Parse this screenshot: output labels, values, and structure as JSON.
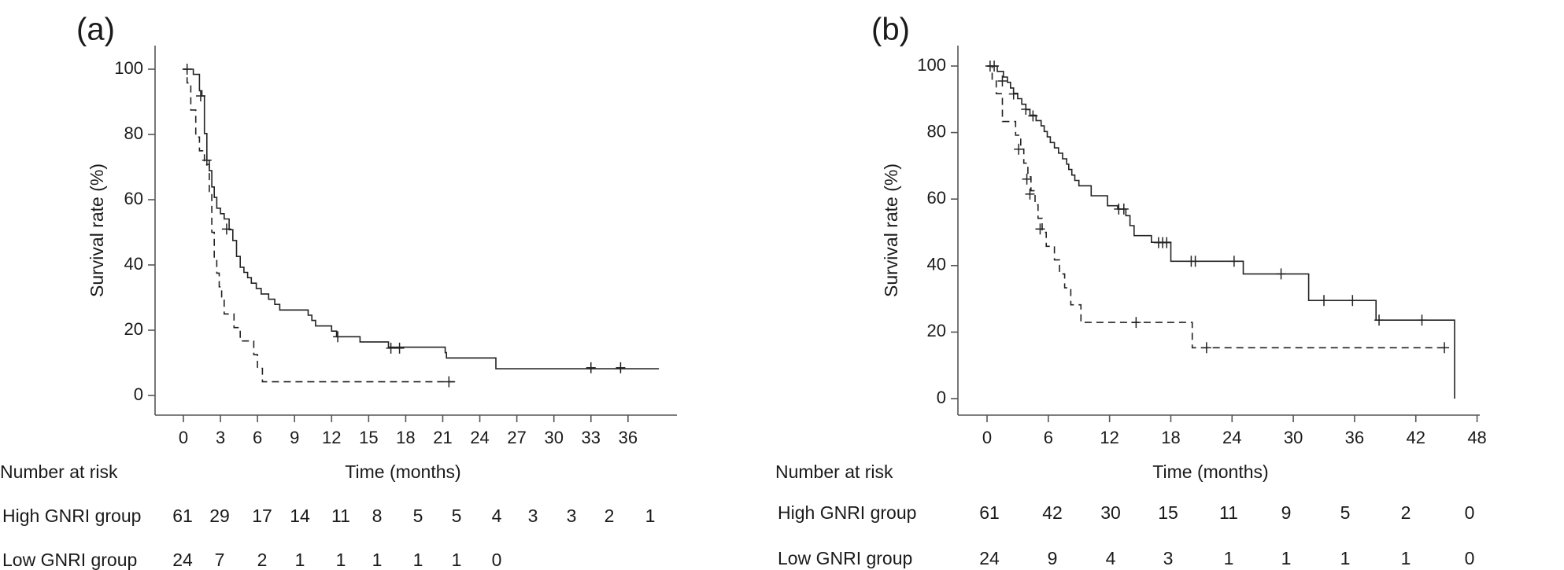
{
  "chart_data": [
    {
      "type": "line",
      "panel_label": "(a)",
      "xlabel": "Time (months)",
      "ylabel": "Survival rate (%)",
      "xlim": [
        -2,
        39.5
      ],
      "ylim": [
        -2,
        106
      ],
      "xticks": [
        "0",
        "3",
        "6",
        "9",
        "12",
        "15",
        "18",
        "21",
        "24",
        "27",
        "30",
        "33",
        "36"
      ],
      "yticks": [
        "0",
        "20",
        "40",
        "60",
        "80",
        "100"
      ],
      "series": [
        {
          "style": "solid",
          "steps": [
            [
              0,
              100
            ],
            [
              0.8,
              98.4
            ],
            [
              1.3,
              93.4
            ],
            [
              1.5,
              91.8
            ],
            [
              1.7,
              80.3
            ],
            [
              1.9,
              72.1
            ],
            [
              2.1,
              68.9
            ],
            [
              2.3,
              63.9
            ],
            [
              2.5,
              60.7
            ],
            [
              2.7,
              57.4
            ],
            [
              3.0,
              55.7
            ],
            [
              3.3,
              54.1
            ],
            [
              3.7,
              50.8
            ],
            [
              4.0,
              47.5
            ],
            [
              4.3,
              42.6
            ],
            [
              4.6,
              39.3
            ],
            [
              4.9,
              37.7
            ],
            [
              5.2,
              36.1
            ],
            [
              5.5,
              34.4
            ],
            [
              5.9,
              32.8
            ],
            [
              6.3,
              31.1
            ],
            [
              6.9,
              29.5
            ],
            [
              7.4,
              27.9
            ],
            [
              7.8,
              26.2
            ],
            [
              10.1,
              24.6
            ],
            [
              10.4,
              23.0
            ],
            [
              10.7,
              21.3
            ],
            [
              12.0,
              19.7
            ],
            [
              12.4,
              18.0
            ],
            [
              14.3,
              16.4
            ],
            [
              16.6,
              14.8
            ],
            [
              21.2,
              13.1
            ],
            [
              21.3,
              11.5
            ],
            [
              25.3,
              8.2
            ],
            [
              38.5,
              8.2
            ]
          ],
          "censored": [
            [
              0.3,
              100
            ],
            [
              1.4,
              91.8
            ],
            [
              1.9,
              72.1
            ],
            [
              3.5,
              51.0
            ],
            [
              12.5,
              18.0
            ],
            [
              16.8,
              14.5
            ],
            [
              17.5,
              14.5
            ],
            [
              33.0,
              8.5
            ],
            [
              35.4,
              8.5
            ]
          ]
        },
        {
          "style": "dashed",
          "steps": [
            [
              0,
              100
            ],
            [
              0.3,
              95.8
            ],
            [
              0.6,
              87.5
            ],
            [
              1.0,
              79.2
            ],
            [
              1.3,
              75.0
            ],
            [
              1.7,
              70.8
            ],
            [
              2.1,
              62.5
            ],
            [
              2.3,
              50.0
            ],
            [
              2.5,
              41.7
            ],
            [
              2.7,
              37.5
            ],
            [
              2.9,
              33.3
            ],
            [
              3.1,
              29.2
            ],
            [
              3.3,
              25.0
            ],
            [
              4.1,
              20.8
            ],
            [
              4.6,
              16.7
            ],
            [
              5.7,
              12.5
            ],
            [
              6.0,
              8.3
            ],
            [
              6.4,
              4.2
            ],
            [
              22.0,
              4.2
            ]
          ],
          "censored": [
            [
              21.5,
              4.2
            ]
          ]
        }
      ],
      "risk_table": {
        "title": "Number at risk",
        "times": [
          0,
          3,
          6,
          9,
          12,
          15,
          18,
          21,
          24,
          27,
          30,
          33,
          36
        ],
        "rows": [
          {
            "label": "High GNRI group",
            "values": [
              "61",
              "29",
              "17",
              "14",
              "11",
              "8",
              "5",
              "5",
              "4",
              "3",
              "3",
              "2",
              "1"
            ]
          },
          {
            "label": "Low GNRI group",
            "values": [
              "24",
              "7",
              "2",
              "1",
              "1",
              "1",
              "1",
              "1",
              "0"
            ]
          }
        ]
      }
    },
    {
      "type": "line",
      "panel_label": "(b)",
      "xlabel": "Time (months)",
      "ylabel": "Survival rate (%)",
      "xlim": [
        -3,
        50.5
      ],
      "ylim": [
        -6,
        106
      ],
      "xticks": [
        "0",
        "6",
        "12",
        "18",
        "24",
        "30",
        "36",
        "42",
        "48"
      ],
      "yticks": [
        "0",
        "20",
        "40",
        "60",
        "80",
        "100"
      ],
      "series": [
        {
          "style": "solid",
          "steps": [
            [
              0,
              100
            ],
            [
              1.0,
              98.4
            ],
            [
              1.6,
              96.7
            ],
            [
              2.0,
              95.1
            ],
            [
              2.3,
              93.4
            ],
            [
              2.6,
              91.8
            ],
            [
              3.0,
              90.2
            ],
            [
              3.4,
              88.5
            ],
            [
              3.8,
              86.9
            ],
            [
              4.2,
              85.2
            ],
            [
              4.8,
              83.6
            ],
            [
              5.3,
              82.0
            ],
            [
              5.6,
              80.3
            ],
            [
              5.9,
              78.7
            ],
            [
              6.2,
              77.0
            ],
            [
              6.6,
              75.4
            ],
            [
              7.0,
              73.8
            ],
            [
              7.4,
              72.1
            ],
            [
              7.8,
              70.5
            ],
            [
              8.0,
              68.9
            ],
            [
              8.3,
              67.2
            ],
            [
              8.6,
              65.6
            ],
            [
              9.0,
              64.0
            ],
            [
              10.2,
              61.0
            ],
            [
              11.8,
              58.0
            ],
            [
              12.8,
              57.0
            ],
            [
              13.6,
              55.0
            ],
            [
              14.0,
              52.0
            ],
            [
              14.4,
              49.0
            ],
            [
              16.1,
              47.0
            ],
            [
              18.0,
              41.3
            ],
            [
              25.1,
              37.5
            ],
            [
              31.5,
              29.5
            ],
            [
              38.1,
              23.6
            ],
            [
              45.8,
              23.6
            ],
            [
              45.8,
              0
            ]
          ],
          "censored": [
            [
              0.3,
              100
            ],
            [
              0.7,
              100
            ],
            [
              1.5,
              95.5
            ],
            [
              2.6,
              91.6
            ],
            [
              3.8,
              87.0
            ],
            [
              4.5,
              85.0
            ],
            [
              12.9,
              57.0
            ],
            [
              13.4,
              57.0
            ],
            [
              16.8,
              46.9
            ],
            [
              17.2,
              46.9
            ],
            [
              17.6,
              46.9
            ],
            [
              20.0,
              41.3
            ],
            [
              20.4,
              41.3
            ],
            [
              24.2,
              41.3
            ],
            [
              28.8,
              37.5
            ],
            [
              33.0,
              29.5
            ],
            [
              35.8,
              29.5
            ],
            [
              38.4,
              23.6
            ],
            [
              42.6,
              23.6
            ]
          ]
        },
        {
          "style": "dashed",
          "steps": [
            [
              0,
              100
            ],
            [
              0.5,
              95.8
            ],
            [
              0.9,
              91.7
            ],
            [
              1.5,
              83.3
            ],
            [
              2.8,
              79.2
            ],
            [
              3.3,
              75.0
            ],
            [
              3.6,
              70.8
            ],
            [
              4.0,
              66.7
            ],
            [
              4.3,
              62.5
            ],
            [
              4.7,
              58.3
            ],
            [
              5.0,
              54.2
            ],
            [
              5.4,
              50.0
            ],
            [
              5.8,
              45.8
            ],
            [
              6.6,
              41.7
            ],
            [
              7.1,
              37.5
            ],
            [
              7.6,
              33.3
            ],
            [
              8.2,
              28.2
            ],
            [
              9.2,
              22.9
            ],
            [
              20.1,
              22.9
            ],
            [
              20.1,
              15.3
            ],
            [
              45.2,
              15.3
            ]
          ],
          "censored": [
            [
              3.1,
              75.0
            ],
            [
              3.9,
              66.0
            ],
            [
              4.2,
              61.5
            ],
            [
              5.2,
              51.0
            ],
            [
              14.6,
              22.9
            ],
            [
              21.5,
              15.3
            ],
            [
              44.8,
              15.3
            ]
          ]
        }
      ],
      "risk_table": {
        "title": "Number at risk",
        "times": [
          0,
          6,
          12,
          18,
          24,
          30,
          36,
          42,
          48
        ],
        "rows": [
          {
            "label": "High GNRI group",
            "values": [
              "61",
              "42",
              "30",
              "15",
              "11",
              "9",
              "5",
              "2",
              "0"
            ]
          },
          {
            "label": "Low GNRI group",
            "values": [
              "24",
              "9",
              "4",
              "3",
              "1",
              "1",
              "1",
              "1",
              "0"
            ]
          }
        ]
      }
    }
  ]
}
